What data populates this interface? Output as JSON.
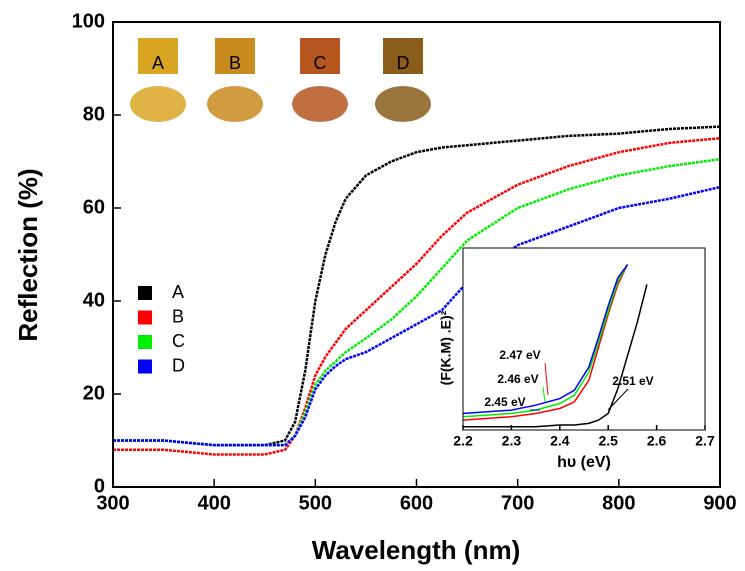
{
  "chart_data": [
    {
      "type": "line",
      "xlabel": "Wavelength (nm)",
      "ylabel": "Reflection (%)",
      "x": [
        300,
        350,
        400,
        450,
        470,
        480,
        490,
        500,
        510,
        520,
        530,
        550,
        575,
        600,
        625,
        650,
        700,
        750,
        800,
        850,
        900
      ],
      "series": [
        {
          "name": "A",
          "color": "#000000",
          "values": [
            10,
            10,
            9,
            9,
            10,
            14,
            25,
            40,
            50,
            57,
            62,
            67,
            70,
            72,
            73,
            73.5,
            74.5,
            75.5,
            76,
            77,
            77.5
          ]
        },
        {
          "name": "B",
          "color": "#ff0000",
          "values": [
            8,
            8,
            7,
            7,
            8,
            11,
            17,
            24,
            28,
            31,
            34,
            38,
            43,
            48,
            54,
            59,
            65,
            69,
            72,
            74,
            75
          ]
        },
        {
          "name": "C",
          "color": "#00ee00",
          "values": [
            10,
            10,
            9,
            9,
            9,
            11,
            16,
            22,
            25,
            27,
            29,
            32,
            36,
            41,
            47,
            53,
            60,
            64,
            67,
            69,
            70.5
          ]
        },
        {
          "name": "D",
          "color": "#0000ff",
          "values": [
            10,
            10,
            9,
            9,
            9,
            11,
            15,
            21,
            24,
            26,
            27.5,
            29,
            32,
            35,
            38,
            44,
            52,
            56,
            60,
            62,
            64.5
          ]
        }
      ],
      "xlim": [
        300,
        900
      ],
      "xticks": [
        300,
        400,
        500,
        600,
        700,
        800,
        900
      ],
      "ylim": [
        0,
        100
      ],
      "yticks": [
        0,
        20,
        40,
        60,
        80,
        100
      ],
      "legend": "center left",
      "swatches": [
        {
          "label": "A",
          "color": "#d9a623"
        },
        {
          "label": "B",
          "color": "#c98a1e"
        },
        {
          "label": "C",
          "color": "#b5561e"
        },
        {
          "label": "D",
          "color": "#8a5d1c"
        }
      ]
    },
    {
      "type": "line",
      "xlabel": "hυ (eV)",
      "ylabel": "(F(K.M) .E)²",
      "x": [
        2.2,
        2.25,
        2.3,
        2.35,
        2.4,
        2.43,
        2.46,
        2.48,
        2.5,
        2.52,
        2.54,
        2.56,
        2.58
      ],
      "series": [
        {
          "name": "A",
          "color": "#000000",
          "values": [
            0.02,
            0.02,
            0.02,
            0.02,
            0.03,
            0.03,
            0.04,
            0.06,
            0.1,
            0.25,
            0.45,
            0.65,
            0.88
          ]
        },
        {
          "name": "B",
          "color": "#ff0000",
          "values": [
            0.06,
            0.07,
            0.08,
            0.1,
            0.13,
            0.17,
            0.3,
            0.5,
            0.7,
            0.88,
            1.0,
            null,
            null
          ]
        },
        {
          "name": "C",
          "color": "#00ee00",
          "values": [
            0.08,
            0.09,
            0.1,
            0.12,
            0.16,
            0.21,
            0.35,
            0.53,
            0.72,
            0.9,
            1.0,
            null,
            null
          ]
        },
        {
          "name": "D",
          "color": "#0000ff",
          "values": [
            0.1,
            0.11,
            0.12,
            0.15,
            0.19,
            0.24,
            0.38,
            0.56,
            0.75,
            0.92,
            1.0,
            null,
            null
          ]
        }
      ],
      "xlim": [
        2.2,
        2.7
      ],
      "xticks": [
        2.2,
        2.3,
        2.4,
        2.5,
        2.6,
        2.7
      ],
      "ylim": [
        0,
        1.1
      ],
      "annotations": [
        "2.47 eV",
        "2.46 eV",
        "2.45 eV",
        "2.51 eV"
      ]
    }
  ]
}
